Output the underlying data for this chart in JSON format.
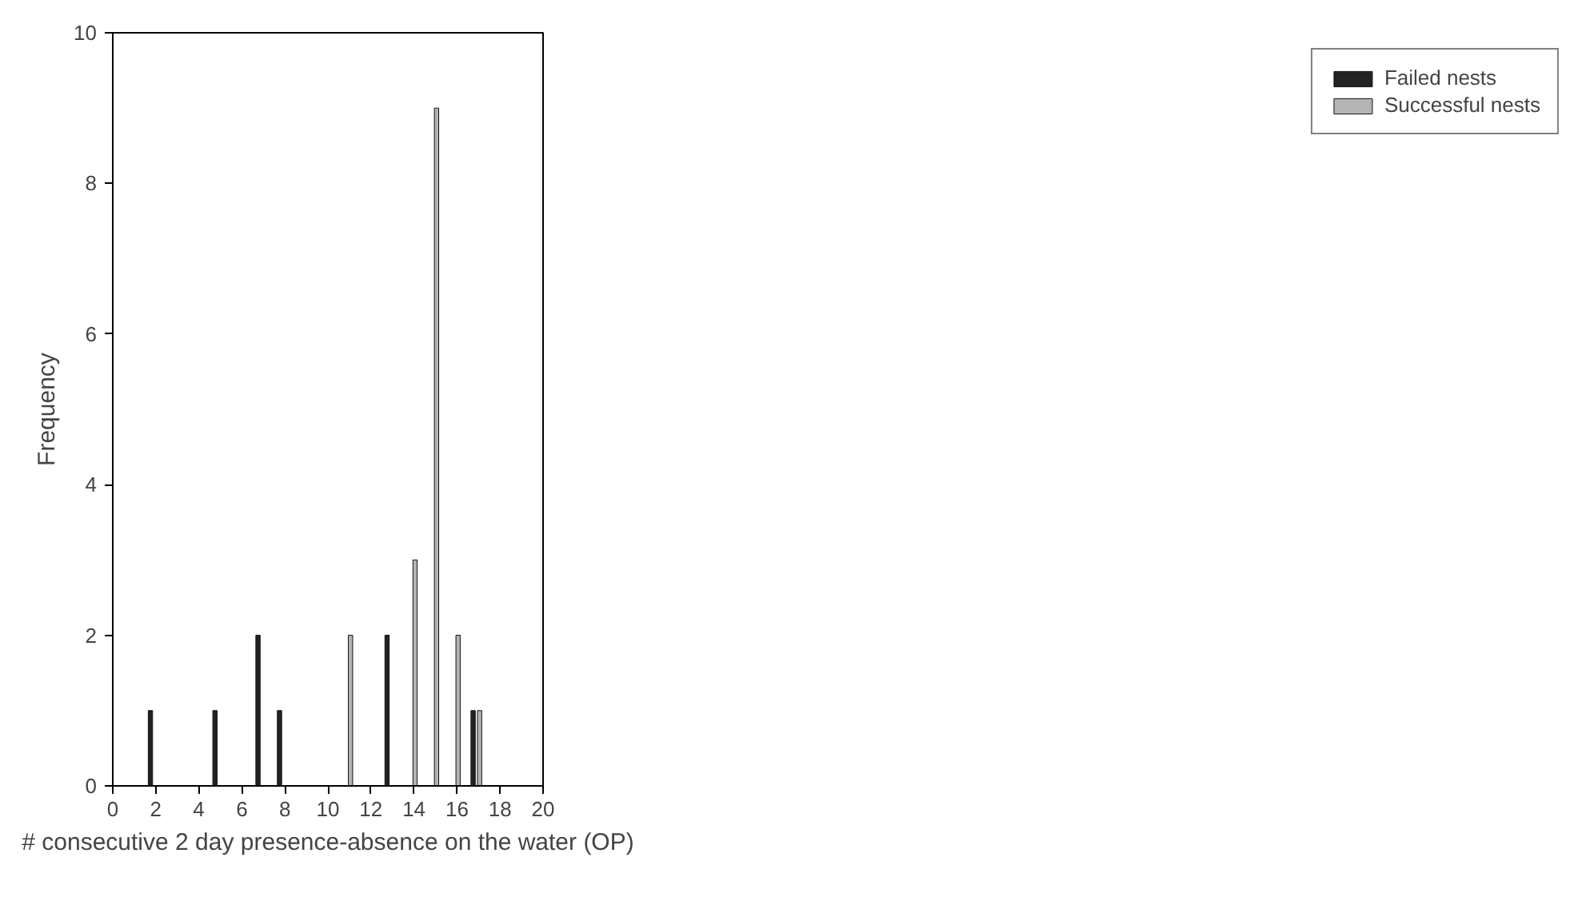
{
  "chart_data": {
    "type": "bar",
    "xlabel": "# consecutive 2 day presence-absence on the water (OP)",
    "ylabel": "Frequency",
    "series": [
      {
        "name": "Failed nests",
        "color": "#222222",
        "x": [
          2,
          5,
          7,
          8,
          13,
          17
        ],
        "values": [
          1,
          1,
          2,
          1,
          2,
          1
        ]
      },
      {
        "name": "Successful nests",
        "color": "#b4b4b4",
        "x": [
          11,
          14,
          15,
          16,
          17
        ],
        "values": [
          2,
          3,
          9,
          2,
          1
        ]
      }
    ],
    "xlim": [
      0,
      20
    ],
    "xticks": [
      0,
      2,
      4,
      6,
      8,
      10,
      12,
      14,
      16,
      18,
      20
    ],
    "ylim": [
      0,
      10
    ],
    "yticks": [
      0,
      2,
      4,
      6,
      8,
      10
    ],
    "grid": false,
    "legend": "right"
  }
}
